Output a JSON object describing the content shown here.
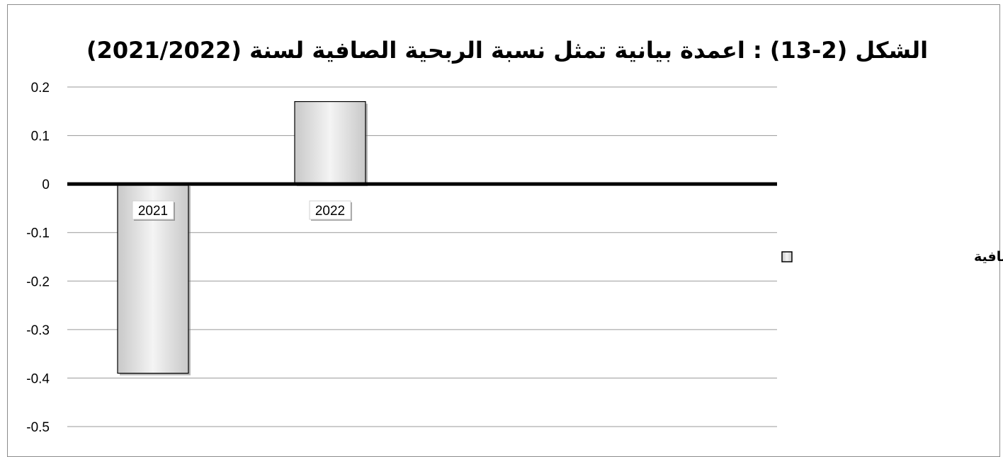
{
  "chart_data": {
    "type": "bar",
    "title": "الشكل (2-13) : اعمدة بيانية تمثل نسبة الربحية الصافية لسنة (2021/2022)",
    "categories": [
      "2021",
      "2022"
    ],
    "series": [
      {
        "name": "نسبة الربحية الصافية",
        "values": [
          -0.39,
          0.17
        ]
      }
    ],
    "ylim": [
      -0.5,
      0.2
    ],
    "yticks": [
      "0.2",
      "0.1",
      "0",
      "-0.1",
      "-0.2",
      "-0.3",
      "-0.4",
      "-0.5"
    ],
    "xlabel": "",
    "ylabel": "",
    "grid": true,
    "legend_position": "right",
    "colors": {
      "bar_fill_light": "#f4f4f4",
      "bar_fill_dark": "#c8c8c8",
      "bar_stroke": "#000000",
      "gridline": "#9a9a9a",
      "zero_line": "#000000"
    }
  }
}
